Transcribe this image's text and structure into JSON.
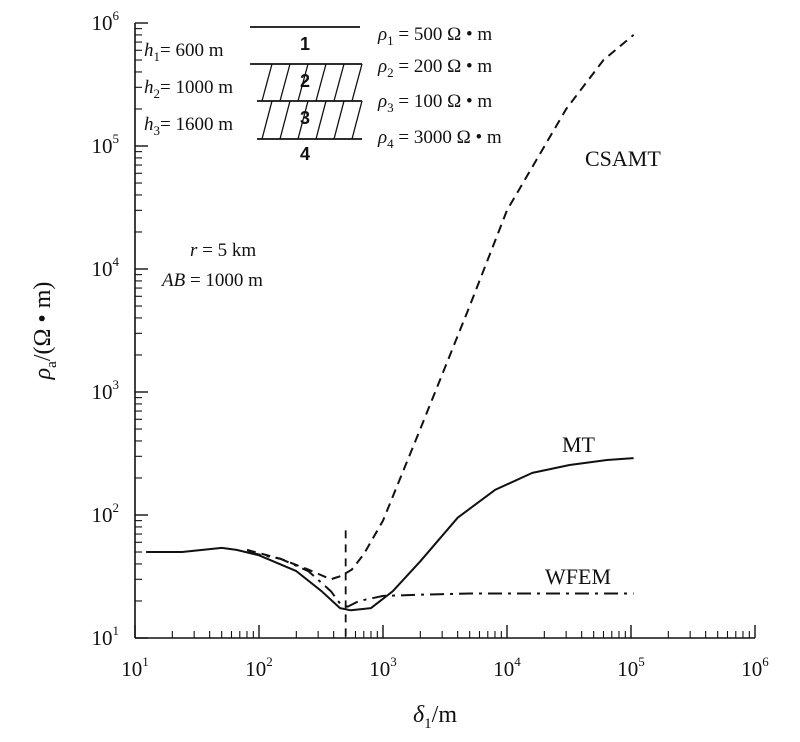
{
  "chart_data": {
    "type": "line",
    "x_scale": "log",
    "y_scale": "log",
    "xlim": [
      10,
      1000000
    ],
    "ylim": [
      10,
      1000000
    ],
    "xlabel": {
      "symbol": "δ",
      "subscript": "1",
      "unit": "/m"
    },
    "ylabel": {
      "symbol": "ρ",
      "subscript": "a",
      "unit": "/(Ω • m)"
    },
    "x_ticks": [
      {
        "base": "10",
        "exp": "1",
        "value": 10
      },
      {
        "base": "10",
        "exp": "2",
        "value": 100
      },
      {
        "base": "10",
        "exp": "3",
        "value": 1000
      },
      {
        "base": "10",
        "exp": "4",
        "value": 10000
      },
      {
        "base": "10",
        "exp": "5",
        "value": 100000
      },
      {
        "base": "10",
        "exp": "6",
        "value": 1000000
      }
    ],
    "y_ticks": [
      {
        "base": "10",
        "exp": "1",
        "value": 10
      },
      {
        "base": "10",
        "exp": "2",
        "value": 100
      },
      {
        "base": "10",
        "exp": "3",
        "value": 1000
      },
      {
        "base": "10",
        "exp": "4",
        "value": 10000
      },
      {
        "base": "10",
        "exp": "5",
        "value": 100000
      },
      {
        "base": "10",
        "exp": "6",
        "value": 1000000
      }
    ],
    "series": [
      {
        "name": "MT",
        "style": "solid",
        "x": [
          12.3,
          24,
          50,
          66,
          100,
          200,
          320,
          450,
          550,
          800,
          1200,
          2000,
          4000,
          8000,
          16000,
          32000,
          64000,
          105000
        ],
        "y": [
          50,
          50,
          54,
          52,
          47,
          35,
          24,
          17.5,
          16.8,
          17.5,
          24,
          42,
          95,
          160,
          220,
          255,
          280,
          290
        ]
      },
      {
        "name": "CSAMT",
        "style": "dashed",
        "x": [
          80,
          150,
          250,
          380,
          460,
          560,
          700,
          1000,
          2000,
          5000,
          10000,
          30000,
          60000,
          105000
        ],
        "y": [
          52,
          44,
          36,
          30,
          32,
          36,
          48,
          90,
          500,
          5000,
          30000,
          200000,
          500000,
          800000
        ]
      },
      {
        "name": "WFEM",
        "style": "dash-dot",
        "x": [
          80,
          150,
          250,
          380,
          460,
          520,
          640,
          1000,
          2000,
          5000,
          20000,
          105000
        ],
        "y": [
          50,
          44,
          35,
          24,
          18.5,
          18,
          20,
          22,
          22.5,
          23,
          23,
          23
        ]
      }
    ],
    "vertical_marker": {
      "x": 500,
      "style": "dashed",
      "y_range": [
        10,
        75
      ]
    },
    "series_labels": {
      "csamt": "CSAMT",
      "mt": "MT",
      "wfem": "WFEM"
    },
    "model_inset": {
      "thicknesses": [
        {
          "sym": "h",
          "sub": "1",
          "val": "= 600 m"
        },
        {
          "sym": "h",
          "sub": "2",
          "val": "= 1000 m"
        },
        {
          "sym": "h",
          "sub": "3",
          "val": "= 1600 m"
        }
      ],
      "resistivities": [
        {
          "sym": "ρ",
          "sub": "1",
          "val": "= 500 Ω • m"
        },
        {
          "sym": "ρ",
          "sub": "2",
          "val": "= 200 Ω • m"
        },
        {
          "sym": "ρ",
          "sub": "3",
          "val": "= 100 Ω • m"
        },
        {
          "sym": "ρ",
          "sub": "4",
          "val": "= 3000 Ω • m"
        }
      ],
      "layer_numbers": [
        "1",
        "2",
        "3",
        "4"
      ]
    },
    "parameters": {
      "r": {
        "sym": "r",
        "val": "= 5 km"
      },
      "ab": {
        "sym": "AB",
        "val": "= 1000 m"
      }
    }
  }
}
